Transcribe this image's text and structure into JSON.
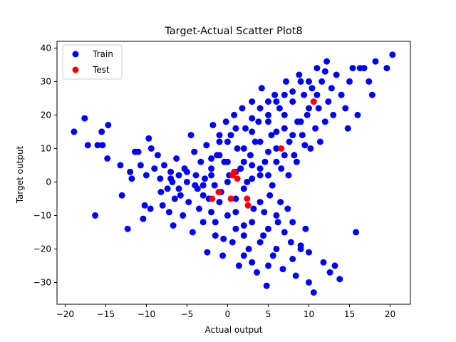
{
  "chart_data": {
    "type": "scatter",
    "title": "Target-Actual Scatter Plot8",
    "xlabel": "Actual output",
    "ylabel": "Target output",
    "xlim": [
      -21,
      22.5
    ],
    "ylim": [
      -36.5,
      42
    ],
    "xticks": [
      -20,
      -15,
      -10,
      -5,
      0,
      5,
      10,
      15,
      20
    ],
    "yticks": [
      -30,
      -20,
      -10,
      0,
      10,
      20,
      30,
      40
    ],
    "legend_position": "top-left",
    "colors": {
      "train": "#0000ff",
      "test": "#ff0000"
    },
    "series": [
      {
        "name": "Train",
        "points": [
          [
            -18.9,
            15
          ],
          [
            -17.6,
            19
          ],
          [
            -17.2,
            11
          ],
          [
            -16.3,
            -10
          ],
          [
            -16,
            11
          ],
          [
            -15.5,
            15
          ],
          [
            -15.4,
            11
          ],
          [
            -14.7,
            17
          ],
          [
            -14.8,
            7
          ],
          [
            -13.2,
            5
          ],
          [
            -13.0,
            -4
          ],
          [
            -12.3,
            -14
          ],
          [
            -12.0,
            3
          ],
          [
            -11.8,
            1
          ],
          [
            -11.4,
            9
          ],
          [
            -11.0,
            9
          ],
          [
            -10.7,
            5
          ],
          [
            -10.4,
            -11
          ],
          [
            -10.2,
            -7
          ],
          [
            -10.0,
            2
          ],
          [
            -9.7,
            13
          ],
          [
            -9.4,
            10
          ],
          [
            -9.5,
            -8
          ],
          [
            -9.0,
            4
          ],
          [
            -8.6,
            8
          ],
          [
            -8.3,
            1
          ],
          [
            -8.2,
            -3
          ],
          [
            -8.0,
            -7
          ],
          [
            -7.8,
            5
          ],
          [
            -7.4,
            -2
          ],
          [
            -7.2,
            -9
          ],
          [
            -7.0,
            3
          ],
          [
            -6.8,
            0
          ],
          [
            -6.7,
            -13
          ],
          [
            -6.5,
            -5
          ],
          [
            -6.3,
            7
          ],
          [
            -6.0,
            2
          ],
          [
            -5.8,
            -4
          ],
          [
            -5.5,
            -10
          ],
          [
            -5.3,
            4
          ],
          [
            -5.0,
            0
          ],
          [
            -4.8,
            -6
          ],
          [
            -4.5,
            14
          ],
          [
            -4.3,
            -15
          ],
          [
            -4.1,
            9
          ],
          [
            -3.9,
            2
          ],
          [
            -3.7,
            -2
          ],
          [
            -3.5,
            -8
          ],
          [
            -3.3,
            6
          ],
          [
            -3.0,
            -12
          ],
          [
            -2.8,
            1
          ],
          [
            -2.6,
            11
          ],
          [
            -2.5,
            -21
          ],
          [
            -2.3,
            -5
          ],
          [
            -2.0,
            4
          ],
          [
            -1.8,
            17
          ],
          [
            -1.6,
            -1
          ],
          [
            -1.5,
            -16
          ],
          [
            -1.3,
            8
          ],
          [
            -1.0,
            12
          ],
          [
            -0.8,
            -3
          ],
          [
            -0.6,
            -22
          ],
          [
            -0.4,
            6
          ],
          [
            -0.2,
            18
          ],
          [
            0.0,
            -10
          ],
          [
            0.2,
            2
          ],
          [
            0.4,
            14
          ],
          [
            0.6,
            -18
          ],
          [
            0.8,
            20
          ],
          [
            1.0,
            -5
          ],
          [
            1.2,
            10
          ],
          [
            1.4,
            -25
          ],
          [
            1.6,
            4
          ],
          [
            1.8,
            22
          ],
          [
            2.0,
            -13
          ],
          [
            2.2,
            16
          ],
          [
            2.4,
            0
          ],
          [
            2.6,
            -20
          ],
          [
            2.8,
            8
          ],
          [
            3.0,
            24
          ],
          [
            3.2,
            -8
          ],
          [
            3.4,
            12
          ],
          [
            3.6,
            -27
          ],
          [
            3.8,
            18
          ],
          [
            4.0,
            2
          ],
          [
            4.2,
            28
          ],
          [
            4.4,
            -16
          ],
          [
            4.6,
            6
          ],
          [
            4.8,
            -31
          ],
          [
            5.0,
            20
          ],
          [
            5.2,
            -4
          ],
          [
            5.4,
            14
          ],
          [
            5.6,
            -22
          ],
          [
            5.8,
            26
          ],
          [
            6.0,
            10
          ],
          [
            6.2,
            -12
          ],
          [
            6.4,
            22
          ],
          [
            6.6,
            4
          ],
          [
            6.8,
            -26
          ],
          [
            7.0,
            16
          ],
          [
            7.2,
            30
          ],
          [
            7.4,
            -8
          ],
          [
            7.6,
            12
          ],
          [
            7.8,
            -18
          ],
          [
            8.0,
            24
          ],
          [
            8.2,
            8
          ],
          [
            8.4,
            -28
          ],
          [
            8.6,
            18
          ],
          [
            8.8,
            32
          ],
          [
            9.0,
            -20
          ],
          [
            9.2,
            14
          ],
          [
            9.4,
            26
          ],
          [
            9.6,
            -14
          ],
          [
            9.8,
            20
          ],
          [
            10.0,
            -30
          ],
          [
            10.2,
            10
          ],
          [
            10.4,
            28
          ],
          [
            10.6,
            -33
          ],
          [
            10.8,
            16
          ],
          [
            11.0,
            34
          ],
          [
            11.2,
            22
          ],
          [
            11.4,
            12
          ],
          [
            11.6,
            30
          ],
          [
            11.8,
            -24
          ],
          [
            12.0,
            18
          ],
          [
            12.2,
            36
          ],
          [
            12.4,
            24
          ],
          [
            12.6,
            -27
          ],
          [
            12.8,
            28
          ],
          [
            13.0,
            20
          ],
          [
            13.2,
            -25
          ],
          [
            13.4,
            32
          ],
          [
            13.8,
            -29
          ],
          [
            14.0,
            26
          ],
          [
            14.5,
            22
          ],
          [
            14.8,
            16
          ],
          [
            15.0,
            30
          ],
          [
            15.4,
            34
          ],
          [
            15.8,
            -15
          ],
          [
            16.0,
            20
          ],
          [
            16.3,
            34
          ],
          [
            16.8,
            34
          ],
          [
            17.4,
            30
          ],
          [
            17.8,
            26
          ],
          [
            18.2,
            36
          ],
          [
            19.6,
            34
          ],
          [
            20.3,
            38
          ],
          [
            -1,
            8
          ],
          [
            -2,
            2
          ],
          [
            -3,
            -1
          ],
          [
            -1,
            -6
          ],
          [
            0,
            0
          ],
          [
            1,
            3
          ],
          [
            2,
            -2
          ],
          [
            3,
            5
          ],
          [
            4,
            -6
          ],
          [
            5,
            9
          ],
          [
            2,
            10
          ],
          [
            3,
            15
          ],
          [
            4,
            12
          ],
          [
            5,
            18
          ],
          [
            6,
            15
          ],
          [
            7,
            20
          ],
          [
            3,
            -12
          ],
          [
            2,
            -16
          ],
          [
            4,
            -18
          ],
          [
            5,
            -14
          ],
          [
            6,
            -10
          ],
          [
            7,
            -15
          ],
          [
            8,
            -12
          ],
          [
            1,
            -9
          ],
          [
            0,
            6
          ],
          [
            -1,
            14
          ],
          [
            2,
            6
          ],
          [
            3,
            1
          ],
          [
            4,
            4
          ],
          [
            5,
            2
          ],
          [
            6,
            6
          ],
          [
            7,
            8
          ],
          [
            8,
            14
          ],
          [
            9,
            18
          ],
          [
            10,
            22
          ],
          [
            11,
            26
          ],
          [
            -2,
            -9
          ],
          [
            -3,
            -4
          ],
          [
            -4,
            -1
          ],
          [
            -5,
            3
          ],
          [
            -6,
            -2
          ],
          [
            -7,
            1
          ],
          [
            -2,
            7
          ],
          [
            0,
            12
          ],
          [
            1,
            16
          ],
          [
            3,
            19
          ],
          [
            4,
            22
          ],
          [
            6,
            24
          ],
          [
            8,
            27
          ],
          [
            9,
            30
          ],
          [
            10,
            30
          ],
          [
            12,
            33
          ],
          [
            7,
            26
          ],
          [
            5,
            24
          ],
          [
            1,
            -14
          ],
          [
            2,
            -22
          ],
          [
            3,
            -24
          ],
          [
            5,
            -25
          ],
          [
            6,
            -20
          ],
          [
            8,
            -23
          ],
          [
            9,
            -19
          ],
          [
            10,
            -21
          ],
          [
            -0.5,
            -17
          ],
          [
            -1.5,
            -12
          ],
          [
            4.5,
            -9
          ],
          [
            5.5,
            -1
          ],
          [
            6.5,
            -6
          ],
          [
            7.5,
            2
          ],
          [
            8.5,
            6
          ],
          [
            9.5,
            11
          ]
        ]
      },
      {
        "name": "Test",
        "points": [
          [
            10.6,
            24
          ],
          [
            6.6,
            10
          ],
          [
            0.8,
            3
          ],
          [
            0.6,
            2
          ],
          [
            1.2,
            1
          ],
          [
            -1.1,
            -3
          ],
          [
            -1.9,
            -5
          ],
          [
            0.4,
            -5
          ],
          [
            2.4,
            -5
          ],
          [
            2.5,
            -7
          ]
        ]
      }
    ]
  }
}
